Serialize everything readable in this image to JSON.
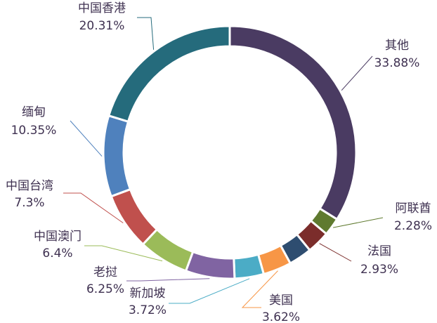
{
  "chart_data": {
    "type": "donut",
    "categories": [
      "其他",
      "阿联酋",
      "法国",
      null,
      "美国",
      "新加坡",
      "老挝",
      "中国澳门",
      "中国台湾",
      "缅甸",
      "中国香港"
    ],
    "values": [
      33.88,
      2.28,
      2.93,
      2.96,
      3.62,
      3.72,
      6.25,
      6.4,
      7.3,
      10.35,
      20.31
    ],
    "value_labels": [
      "33.88%",
      "2.28%",
      "2.93%",
      null,
      "3.62%",
      "3.72%",
      "6.25%",
      "6.4%",
      "7.3%",
      "10.35%",
      "20.31%"
    ],
    "colors": [
      "#4a3b62",
      "#5f7a2f",
      "#7b2d2b",
      "#2e4d70",
      "#f79646",
      "#4bacc6",
      "#8064a2",
      "#9bbb59",
      "#c0504d",
      "#4f81bd",
      "#256b7c"
    ]
  }
}
